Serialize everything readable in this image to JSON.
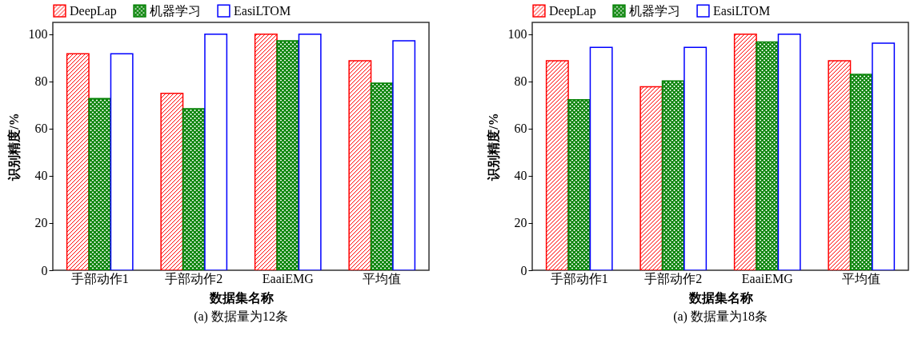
{
  "chart_data": [
    {
      "type": "bar",
      "xlabel": "数据集名称",
      "ylabel": "识别精度/%",
      "categories": [
        "手部动作1",
        "手部动作2",
        "EaaiEMG",
        "平均值"
      ],
      "ylim": [
        0,
        105
      ],
      "yticks": [
        0,
        20,
        40,
        60,
        80,
        100
      ],
      "legend": "top",
      "grid": false,
      "annotations": [
        "(a)  数据量为12条"
      ],
      "series": [
        {
          "name": "DeepLap",
          "color": "#ff0000",
          "values": [
            91.7,
            74.9,
            100,
            88.7
          ]
        },
        {
          "name": "机器学习",
          "color": "#008000",
          "values": [
            72.7,
            68.4,
            97.2,
            79.3
          ]
        },
        {
          "name": "EasiLTOM",
          "color": "#0000ff",
          "values": [
            91.7,
            100,
            100,
            97.2
          ]
        }
      ]
    },
    {
      "type": "bar",
      "xlabel": "数据集名称",
      "ylabel": "识别精度/%",
      "categories": [
        "手部动作1",
        "手部动作2",
        "EaaiEMG",
        "平均值"
      ],
      "ylim": [
        0,
        105
      ],
      "yticks": [
        0,
        20,
        40,
        60,
        80,
        100
      ],
      "legend": "top",
      "grid": false,
      "annotations": [
        "(a)  数据量为18条"
      ],
      "series": [
        {
          "name": "DeepLap",
          "color": "#ff0000",
          "values": [
            88.7,
            77.7,
            100,
            88.7
          ]
        },
        {
          "name": "机器学习",
          "color": "#008000",
          "values": [
            72.2,
            80.2,
            96.7,
            83.0
          ]
        },
        {
          "name": "EasiLTOM",
          "color": "#0000ff",
          "values": [
            94.4,
            94.4,
            100,
            96.2
          ]
        }
      ]
    }
  ]
}
